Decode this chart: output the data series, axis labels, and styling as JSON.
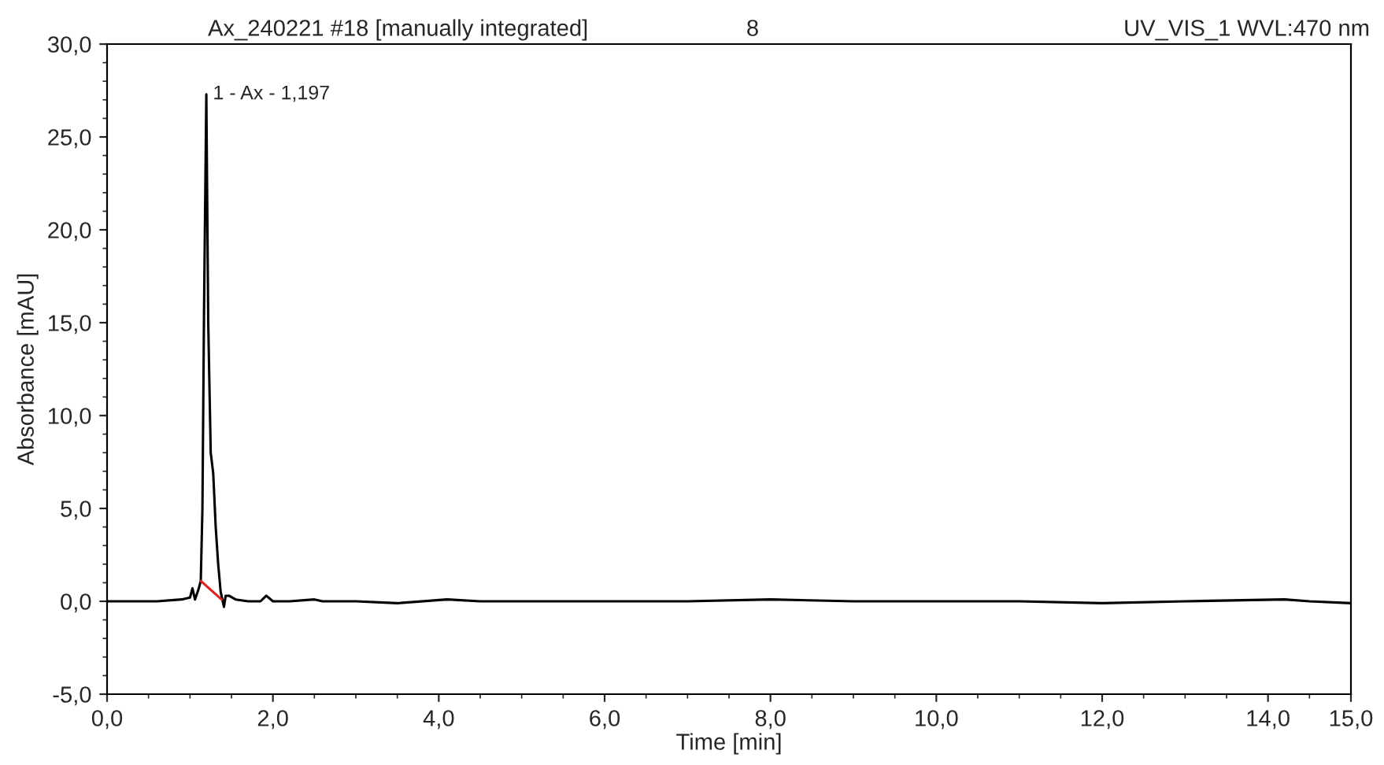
{
  "chart_data": {
    "type": "line",
    "xlabel": "Time [min]",
    "ylabel": "Absorbance [mAU]",
    "annotations": [
      "Ax_240221 #18 [manually integrated]",
      "8",
      "UV_VIS_1 WVL:470 nm",
      {
        "text": "1 - Ax - 1,197",
        "x": 1.197,
        "y": 27.3
      }
    ],
    "series": [
      {
        "color": "#000000",
        "x": [
          0.0,
          0.3,
          0.6,
          0.9,
          1.0,
          1.03,
          1.06,
          1.1,
          1.13,
          1.15,
          1.17,
          1.197,
          1.22,
          1.25,
          1.28,
          1.31,
          1.34,
          1.37,
          1.39,
          1.41,
          1.43,
          1.47,
          1.55,
          1.7,
          1.85,
          1.92,
          2.0,
          2.2,
          2.5,
          2.6,
          3.0,
          3.5,
          4.1,
          4.5,
          5.0,
          6.0,
          7.0,
          8.0,
          9.0,
          10.0,
          11.0,
          12.0,
          13.0,
          14.2,
          14.5,
          15.0
        ],
        "values": [
          0.0,
          0.0,
          0.0,
          0.1,
          0.2,
          0.7,
          0.1,
          0.6,
          1.1,
          5.0,
          16.0,
          27.3,
          15.0,
          8.0,
          6.9,
          4.0,
          2.0,
          0.5,
          0.1,
          -0.3,
          0.3,
          0.3,
          0.1,
          0.0,
          0.0,
          0.3,
          0.0,
          0.0,
          0.1,
          0.0,
          0.0,
          -0.1,
          0.1,
          0.0,
          0.0,
          0.0,
          0.0,
          0.1,
          0.0,
          0.0,
          0.0,
          -0.1,
          0.0,
          0.1,
          0.0,
          -0.1
        ]
      },
      {
        "color": "#e02020",
        "x": [
          1.13,
          1.38
        ],
        "values": [
          1.1,
          0.1
        ]
      }
    ],
    "xlim": [
      0,
      15
    ],
    "ylim": [
      -5,
      30
    ],
    "xticks": [
      {
        "value": 0,
        "label": "0,0"
      },
      {
        "value": 2,
        "label": "2,0"
      },
      {
        "value": 4,
        "label": "4,0"
      },
      {
        "value": 6,
        "label": "6,0"
      },
      {
        "value": 8,
        "label": "8,0"
      },
      {
        "value": 10,
        "label": "10,0"
      },
      {
        "value": 12,
        "label": "12,0"
      },
      {
        "value": 14,
        "label": "14,0"
      },
      {
        "value": 15,
        "label": "15,0"
      }
    ],
    "yticks": [
      {
        "value": -5,
        "label": "-5,0"
      },
      {
        "value": 0,
        "label": "0,0"
      },
      {
        "value": 5,
        "label": "5,0"
      },
      {
        "value": 10,
        "label": "10,0"
      },
      {
        "value": 15,
        "label": "15,0"
      },
      {
        "value": 20,
        "label": "20,0"
      },
      {
        "value": 25,
        "label": "25,0"
      },
      {
        "value": 30,
        "label": "30,0"
      }
    ],
    "grid": false,
    "marker": "none",
    "line_style": "solid"
  }
}
